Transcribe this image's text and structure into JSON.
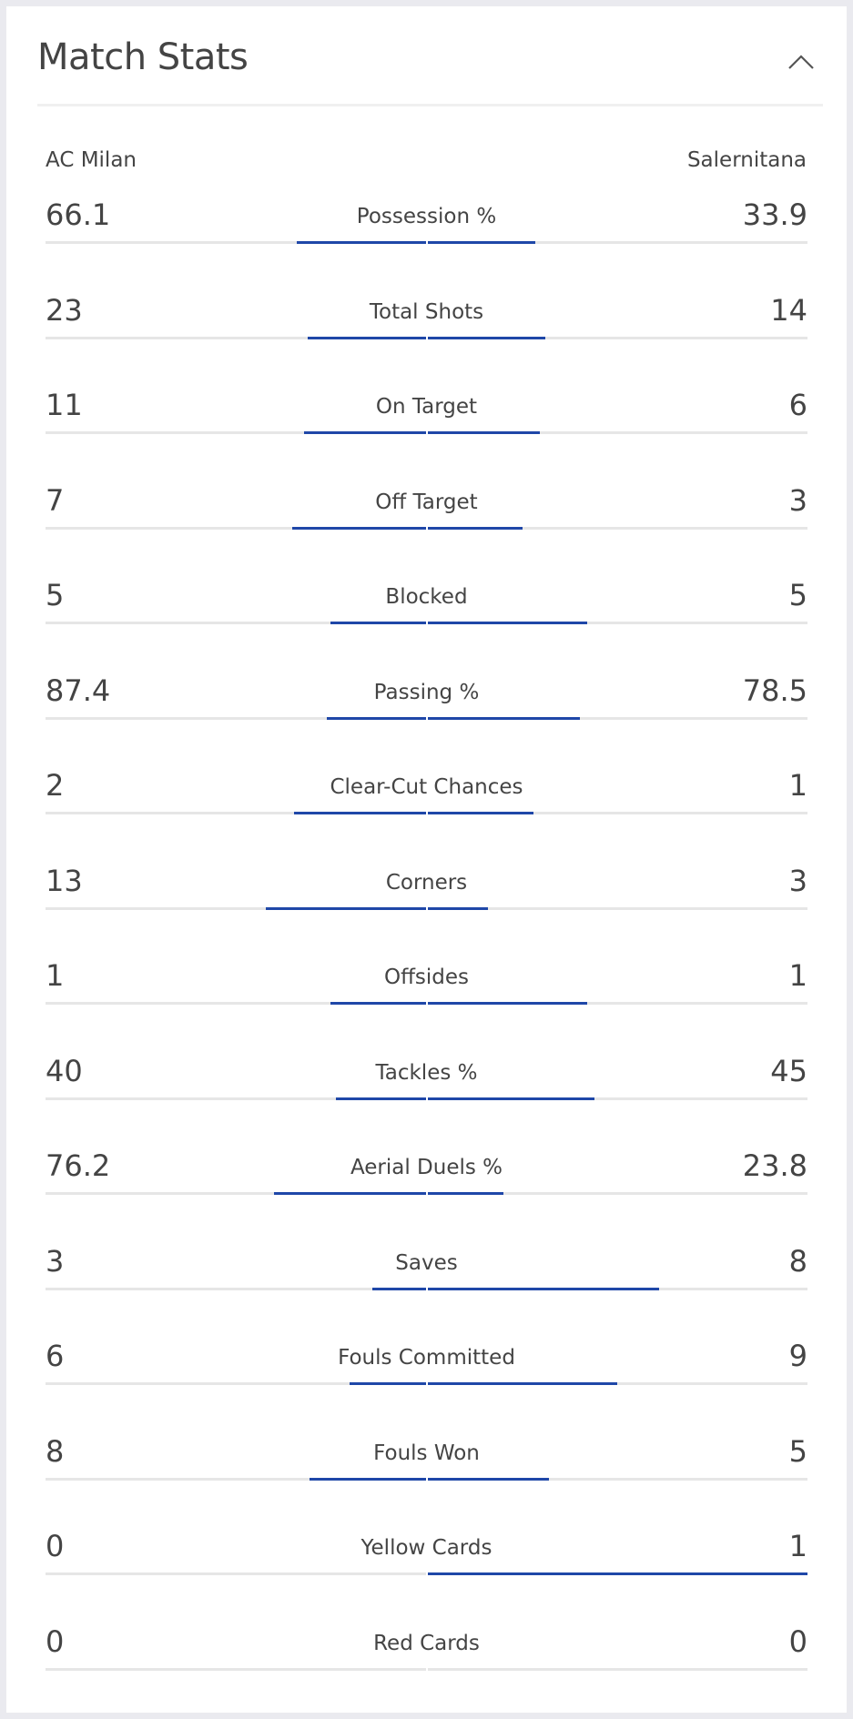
{
  "header": {
    "title": "Match Stats"
  },
  "teams": {
    "home": "AC Milan",
    "away": "Salernitana"
  },
  "stats": [
    {
      "label": "Possession %",
      "home": "66.1",
      "away": "33.9",
      "home_share": 0.34,
      "away_share": 0.285
    },
    {
      "label": "Total Shots",
      "home": "23",
      "away": "14",
      "home_share": 0.31,
      "away_share": 0.31
    },
    {
      "label": "On Target",
      "home": "11",
      "away": "6",
      "home_share": 0.32,
      "away_share": 0.295
    },
    {
      "label": "Off Target",
      "home": "7",
      "away": "3",
      "home_share": 0.35,
      "away_share": 0.25
    },
    {
      "label": "Blocked",
      "home": "5",
      "away": "5",
      "home_share": 0.25,
      "away_share": 0.42
    },
    {
      "label": "Passing %",
      "home": "87.4",
      "away": "78.5",
      "home_share": 0.26,
      "away_share": 0.4
    },
    {
      "label": "Clear-Cut Chances",
      "home": "2",
      "away": "1",
      "home_share": 0.345,
      "away_share": 0.28
    },
    {
      "label": "Corners",
      "home": "13",
      "away": "3",
      "home_share": 0.42,
      "away_share": 0.16
    },
    {
      "label": "Offsides",
      "home": "1",
      "away": "1",
      "home_share": 0.25,
      "away_share": 0.42
    },
    {
      "label": "Tackles %",
      "home": "40",
      "away": "45",
      "home_share": 0.235,
      "away_share": 0.44
    },
    {
      "label": "Aerial Duels %",
      "home": "76.2",
      "away": "23.8",
      "home_share": 0.4,
      "away_share": 0.2
    },
    {
      "label": "Saves",
      "home": "3",
      "away": "8",
      "home_share": 0.14,
      "away_share": 0.61
    },
    {
      "label": "Fouls Committed",
      "home": "6",
      "away": "9",
      "home_share": 0.2,
      "away_share": 0.5
    },
    {
      "label": "Fouls Won",
      "home": "8",
      "away": "5",
      "home_share": 0.305,
      "away_share": 0.32
    },
    {
      "label": "Yellow Cards",
      "home": "0",
      "away": "1",
      "home_share": 0,
      "away_share": 1
    },
    {
      "label": "Red Cards",
      "home": "0",
      "away": "0",
      "home_share": 0,
      "away_share": 0
    }
  ],
  "colors": {
    "bar": "#1f47a8",
    "track": "#e6e6e6",
    "background": "#eaeaef"
  },
  "icons": {
    "collapse": "chevron-up-icon"
  }
}
